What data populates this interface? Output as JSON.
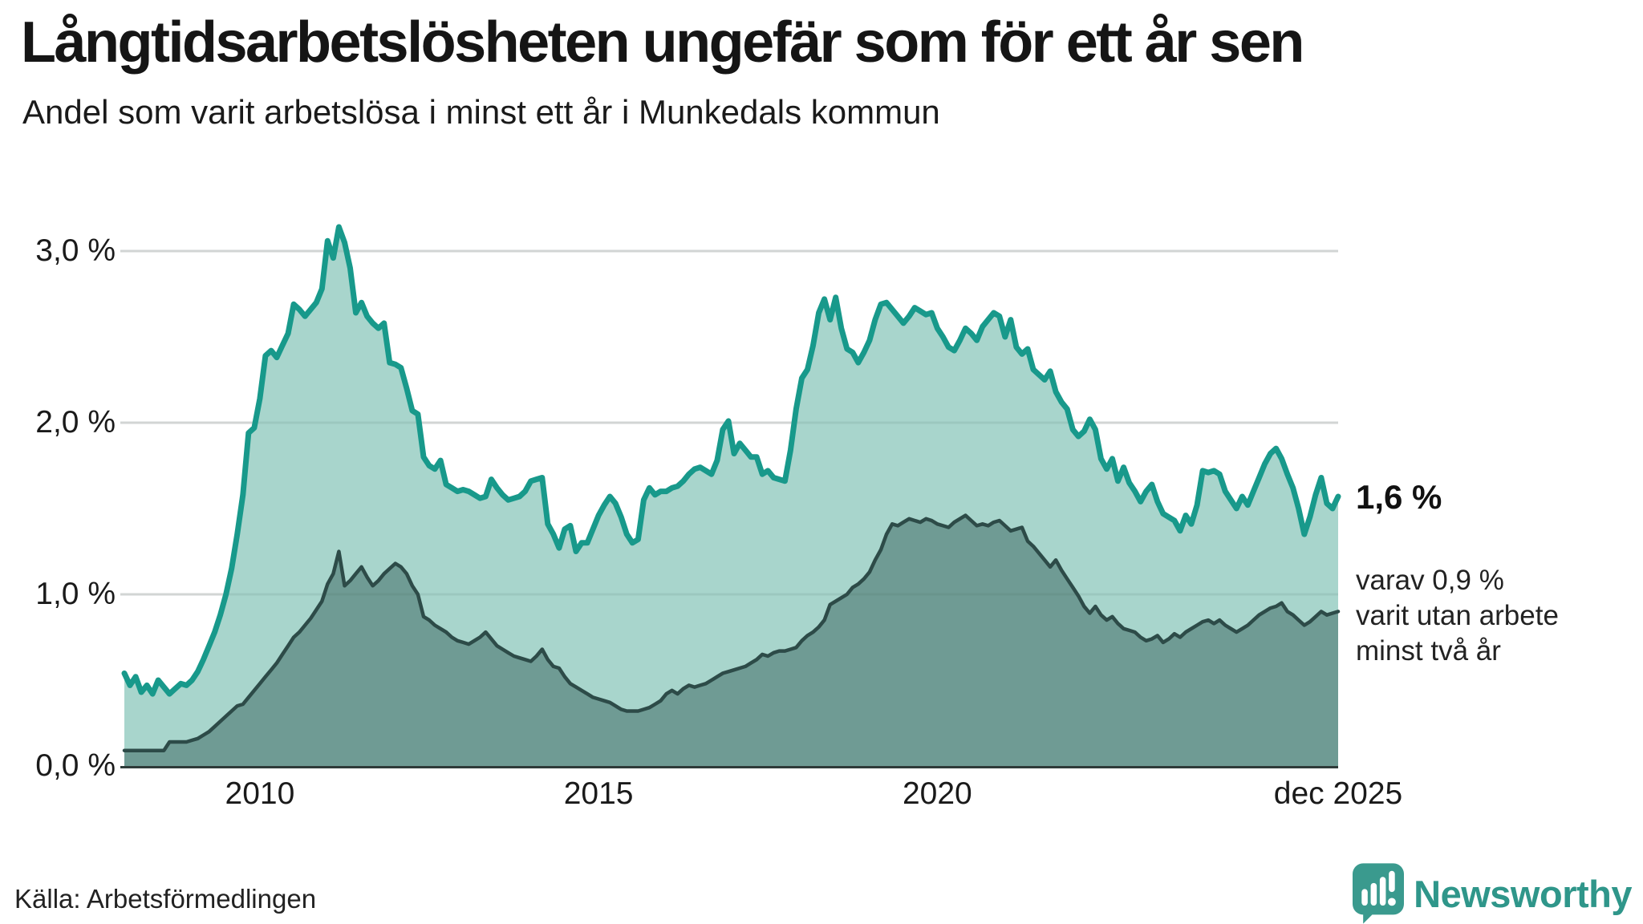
{
  "header": {
    "title": "Långtidsarbetslösheten ungefär som för ett år sen",
    "subtitle": "Andel som varit arbetslösa i minst ett år i Munkedals kommun"
  },
  "annotations": {
    "end_value_label": "1,6 %",
    "detail_lines": [
      "varav 0,9 %",
      "varit utan arbete",
      "minst två år"
    ]
  },
  "footer": {
    "source": "Källa: Arbetsförmedlingen",
    "logo_text": "Newsworthy"
  },
  "colors": {
    "accent_line": "#18998b",
    "accent_fill": "#a8d5cc",
    "secondary_line": "#2d4b48",
    "secondary_fill": "#6f9b94",
    "grid": "#e3e3e3",
    "grid_overlay": "rgba(45,75,72,0.09)",
    "axis": "#2e3b39",
    "text": "#1a1a1a",
    "logo": "#2f968a"
  },
  "chart_data": {
    "type": "area",
    "title": "Långtidsarbetslösheten ungefär som för ett år sen",
    "subtitle": "Andel som varit arbetslösa i minst ett år i Munkedals kommun",
    "unit": "%",
    "frequency": "monthly",
    "period_start": "jan 2008",
    "period_end": "dec 2025",
    "ylim": [
      0,
      3.3
    ],
    "grid": "horizontal",
    "legend_position": "none",
    "y_ticks": [
      {
        "value": 3.0,
        "label": "3,0 %"
      },
      {
        "value": 2.0,
        "label": "2,0 %"
      },
      {
        "value": 1.0,
        "label": "1,0 %"
      },
      {
        "value": 0.0,
        "label": "0,0 %"
      }
    ],
    "x_ticks": [
      {
        "month_index": 24,
        "label": "2010"
      },
      {
        "month_index": 84,
        "label": "2015"
      },
      {
        "month_index": 144,
        "label": "2020"
      },
      {
        "month_index": 215,
        "label": "dec 2025"
      }
    ],
    "series": [
      {
        "name": "arbetslösa minst ett år",
        "end_value": 1.6,
        "values": [
          0.54,
          0.47,
          0.52,
          0.43,
          0.47,
          0.42,
          0.5,
          0.46,
          0.42,
          0.45,
          0.48,
          0.47,
          0.5,
          0.55,
          0.62,
          0.7,
          0.78,
          0.88,
          1.0,
          1.15,
          1.35,
          1.58,
          1.94,
          1.97,
          2.14,
          2.39,
          2.42,
          2.38,
          2.45,
          2.52,
          2.69,
          2.66,
          2.62,
          2.66,
          2.7,
          2.78,
          3.06,
          2.96,
          3.14,
          3.05,
          2.9,
          2.64,
          2.7,
          2.62,
          2.58,
          2.55,
          2.58,
          2.35,
          2.34,
          2.32,
          2.2,
          2.07,
          2.05,
          1.8,
          1.75,
          1.73,
          1.78,
          1.64,
          1.62,
          1.6,
          1.61,
          1.6,
          1.58,
          1.56,
          1.57,
          1.67,
          1.62,
          1.58,
          1.55,
          1.56,
          1.57,
          1.6,
          1.66,
          1.67,
          1.68,
          1.41,
          1.35,
          1.27,
          1.38,
          1.4,
          1.25,
          1.3,
          1.3,
          1.38,
          1.46,
          1.52,
          1.57,
          1.53,
          1.45,
          1.35,
          1.3,
          1.32,
          1.55,
          1.62,
          1.58,
          1.6,
          1.6,
          1.62,
          1.63,
          1.66,
          1.7,
          1.73,
          1.74,
          1.72,
          1.7,
          1.78,
          1.96,
          2.01,
          1.82,
          1.88,
          1.84,
          1.8,
          1.8,
          1.7,
          1.72,
          1.68,
          1.67,
          1.66,
          1.84,
          2.08,
          2.26,
          2.31,
          2.45,
          2.64,
          2.72,
          2.6,
          2.73,
          2.55,
          2.43,
          2.41,
          2.35,
          2.41,
          2.48,
          2.6,
          2.69,
          2.7,
          2.66,
          2.62,
          2.58,
          2.62,
          2.67,
          2.65,
          2.63,
          2.64,
          2.55,
          2.5,
          2.44,
          2.42,
          2.48,
          2.55,
          2.52,
          2.48,
          2.56,
          2.6,
          2.64,
          2.62,
          2.5,
          2.6,
          2.44,
          2.4,
          2.43,
          2.31,
          2.28,
          2.25,
          2.3,
          2.18,
          2.12,
          2.08,
          1.96,
          1.92,
          1.95,
          2.02,
          1.96,
          1.79,
          1.73,
          1.79,
          1.66,
          1.74,
          1.65,
          1.6,
          1.54,
          1.6,
          1.64,
          1.54,
          1.47,
          1.45,
          1.43,
          1.37,
          1.46,
          1.41,
          1.52,
          1.72,
          1.71,
          1.72,
          1.7,
          1.6,
          1.55,
          1.5,
          1.57,
          1.52,
          1.6,
          1.68,
          1.76,
          1.82,
          1.85,
          1.79,
          1.7,
          1.62,
          1.5,
          1.35,
          1.45,
          1.58,
          1.68,
          1.53,
          1.5,
          1.57
        ]
      },
      {
        "name": "varav arbetslösa minst två år",
        "end_value": 0.9,
        "values": [
          0.09,
          0.09,
          0.09,
          0.09,
          0.09,
          0.09,
          0.09,
          0.09,
          0.14,
          0.14,
          0.14,
          0.14,
          0.15,
          0.16,
          0.18,
          0.2,
          0.23,
          0.26,
          0.29,
          0.32,
          0.35,
          0.36,
          0.4,
          0.44,
          0.48,
          0.52,
          0.56,
          0.6,
          0.65,
          0.7,
          0.75,
          0.78,
          0.82,
          0.86,
          0.91,
          0.96,
          1.06,
          1.12,
          1.25,
          1.05,
          1.08,
          1.12,
          1.16,
          1.1,
          1.05,
          1.08,
          1.12,
          1.15,
          1.18,
          1.16,
          1.12,
          1.05,
          1.0,
          0.87,
          0.85,
          0.82,
          0.8,
          0.78,
          0.75,
          0.73,
          0.72,
          0.71,
          0.73,
          0.75,
          0.78,
          0.74,
          0.7,
          0.68,
          0.66,
          0.64,
          0.63,
          0.62,
          0.61,
          0.64,
          0.68,
          0.62,
          0.58,
          0.57,
          0.52,
          0.48,
          0.46,
          0.44,
          0.42,
          0.4,
          0.39,
          0.38,
          0.37,
          0.35,
          0.33,
          0.32,
          0.32,
          0.32,
          0.33,
          0.34,
          0.36,
          0.38,
          0.42,
          0.44,
          0.42,
          0.45,
          0.47,
          0.46,
          0.47,
          0.48,
          0.5,
          0.52,
          0.54,
          0.55,
          0.56,
          0.57,
          0.58,
          0.6,
          0.62,
          0.65,
          0.64,
          0.66,
          0.67,
          0.67,
          0.68,
          0.69,
          0.73,
          0.76,
          0.78,
          0.81,
          0.85,
          0.94,
          0.96,
          0.98,
          1.0,
          1.04,
          1.06,
          1.09,
          1.13,
          1.2,
          1.26,
          1.35,
          1.41,
          1.4,
          1.42,
          1.44,
          1.43,
          1.42,
          1.44,
          1.43,
          1.41,
          1.4,
          1.39,
          1.42,
          1.44,
          1.46,
          1.43,
          1.4,
          1.41,
          1.4,
          1.42,
          1.43,
          1.4,
          1.37,
          1.38,
          1.39,
          1.31,
          1.28,
          1.24,
          1.2,
          1.16,
          1.2,
          1.14,
          1.09,
          1.04,
          0.99,
          0.93,
          0.89,
          0.93,
          0.88,
          0.85,
          0.87,
          0.83,
          0.8,
          0.79,
          0.78,
          0.75,
          0.73,
          0.74,
          0.76,
          0.72,
          0.74,
          0.77,
          0.75,
          0.78,
          0.8,
          0.82,
          0.84,
          0.85,
          0.83,
          0.85,
          0.82,
          0.8,
          0.78,
          0.8,
          0.82,
          0.85,
          0.88,
          0.9,
          0.92,
          0.93,
          0.95,
          0.9,
          0.88,
          0.85,
          0.82,
          0.84,
          0.87,
          0.9,
          0.88,
          0.89,
          0.9
        ]
      }
    ]
  }
}
